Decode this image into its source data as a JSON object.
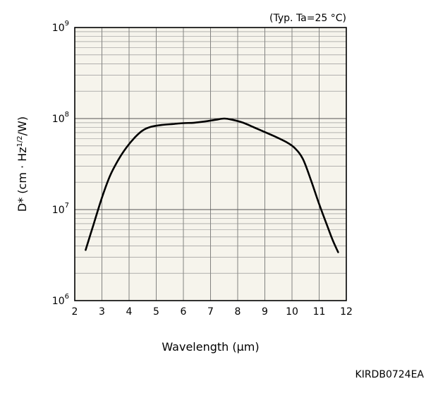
{
  "chart_data": {
    "type": "line",
    "annotation": "(Typ. Ta=25 °C)",
    "xlabel": "Wavelength (μm)",
    "ylabel": {
      "prefix": "D* (cm · Hz",
      "sup": "1/2",
      "suffix": "/W)"
    },
    "xlim": [
      2,
      12
    ],
    "ylim": [
      1000000,
      1000000000
    ],
    "yscale": "log",
    "grid": true,
    "x_ticks": [
      2,
      3,
      4,
      5,
      6,
      7,
      8,
      9,
      10,
      11,
      12
    ],
    "y_ticks": [
      {
        "value": 1000000,
        "base": "10",
        "exp": "6"
      },
      {
        "value": 10000000,
        "base": "10",
        "exp": "7"
      },
      {
        "value": 100000000,
        "base": "10",
        "exp": "8"
      },
      {
        "value": 1000000000,
        "base": "10",
        "exp": "9"
      }
    ],
    "series": [
      {
        "color": "#000000",
        "x": [
          2.4,
          2.7,
          3.0,
          3.3,
          3.6,
          3.9,
          4.2,
          4.5,
          4.8,
          5.2,
          5.6,
          6.0,
          6.4,
          6.8,
          7.2,
          7.5,
          7.8,
          8.2,
          8.6,
          9.0,
          9.4,
          9.8,
          10.1,
          10.4,
          10.7,
          11.0,
          11.3,
          11.5,
          11.7
        ],
        "y": [
          3600000,
          7000000,
          13500000,
          23500000,
          35000000,
          48000000,
          61500000,
          74000000,
          81000000,
          85000000,
          87000000,
          89000000,
          90000000,
          93000000,
          97000000,
          100000000,
          97000000,
          90000000,
          80000000,
          71000000,
          63000000,
          55000000,
          47500000,
          36000000,
          21000000,
          11500000,
          6600000,
          4600000,
          3400000
        ]
      }
    ]
  },
  "figure_code": "KIRDB0724EA"
}
